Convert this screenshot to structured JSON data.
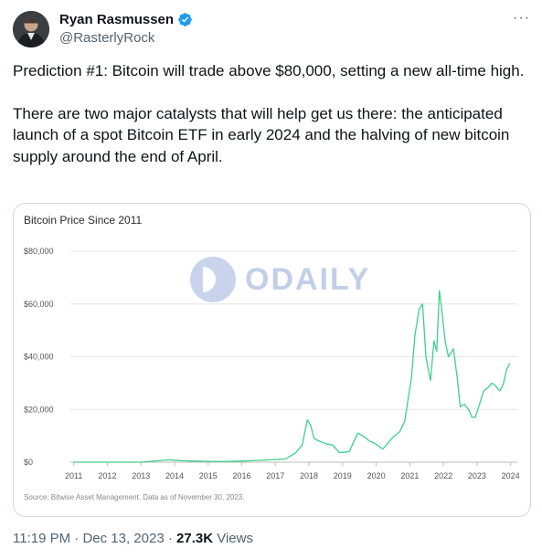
{
  "author": {
    "name": "Ryan Rasmussen",
    "handle": "@RasterlyRock",
    "verified": true,
    "avatar_icon": "person-avatar-icon"
  },
  "menu_icon": "more-options-icon",
  "tweet": {
    "paragraphs": [
      "Prediction #1: Bitcoin will trade above $80,000, setting a new all-time high.",
      "There are two major catalysts that will help get us there: the anticipated launch of a spot Bitcoin ETF in early 2024 and the halving of new bitcoin supply around the end of April."
    ]
  },
  "watermark": {
    "text": "ODAILY"
  },
  "meta": {
    "time": "11:19 PM",
    "separator": "·",
    "date": "Dec 13, 2023",
    "views_count": "27.3K",
    "views_label": "Views"
  },
  "colors": {
    "line": "#3fcf8e",
    "verified": "#1d9bf0"
  },
  "chart_data": {
    "type": "line",
    "title": "Bitcoin Price Since 2011",
    "source": "Source:  Bitwise Asset Management. Data as of November 30, 2023.",
    "xlabel": "",
    "ylabel": "",
    "xlim": [
      2010.9,
      2024.2
    ],
    "ylim": [
      0,
      80000
    ],
    "y_ticks": [
      0,
      20000,
      40000,
      60000,
      80000
    ],
    "y_tick_labels": [
      "$0",
      "$20,000",
      "$40,000",
      "$60,000",
      "$80,000"
    ],
    "x_ticks": [
      2011,
      2012,
      2013,
      2014,
      2015,
      2016,
      2017,
      2018,
      2019,
      2020,
      2021,
      2022,
      2023,
      2024
    ],
    "x_tick_labels": [
      "2011",
      "2012",
      "2013",
      "2014",
      "2015",
      "2016",
      "2017",
      "2018",
      "2019",
      "2020",
      "2021",
      "2022",
      "2023",
      "2024"
    ],
    "grid": true,
    "series": [
      {
        "x": [
          2011.0,
          2012.0,
          2013.0,
          2013.85,
          2013.95,
          2014.2,
          2014.6,
          2015.0,
          2015.5,
          2016.0,
          2016.5,
          2017.0,
          2017.3,
          2017.6,
          2017.8,
          2017.95,
          2018.05,
          2018.15,
          2018.3,
          2018.5,
          2018.7,
          2018.9,
          2019.0,
          2019.2,
          2019.45,
          2019.6,
          2019.8,
          2019.95,
          2020.2,
          2020.5,
          2020.7,
          2020.85,
          2020.95,
          2021.05,
          2021.15,
          2021.28,
          2021.38,
          2021.48,
          2021.55,
          2021.62,
          2021.72,
          2021.8,
          2021.88,
          2021.95,
          2022.05,
          2022.15,
          2022.3,
          2022.42,
          2022.5,
          2022.62,
          2022.75,
          2022.85,
          2022.95,
          2023.05,
          2023.2,
          2023.3,
          2023.45,
          2023.55,
          2023.68,
          2023.78,
          2023.88,
          2023.98
        ],
        "y": [
          0,
          5,
          13,
          900,
          800,
          600,
          400,
          300,
          250,
          430,
          700,
          1000,
          1200,
          3500,
          6500,
          16000,
          14000,
          9000,
          8000,
          7000,
          6500,
          3700,
          3700,
          4000,
          11000,
          10000,
          8000,
          7200,
          5000,
          9500,
          11500,
          15500,
          24000,
          32000,
          48000,
          58000,
          60000,
          40000,
          35000,
          31000,
          46000,
          42000,
          65000,
          58000,
          46000,
          40000,
          43000,
          31000,
          21000,
          22000,
          20000,
          17000,
          17000,
          21000,
          27000,
          28000,
          30000,
          29000,
          27000,
          29500,
          35000,
          37500
        ]
      }
    ]
  }
}
